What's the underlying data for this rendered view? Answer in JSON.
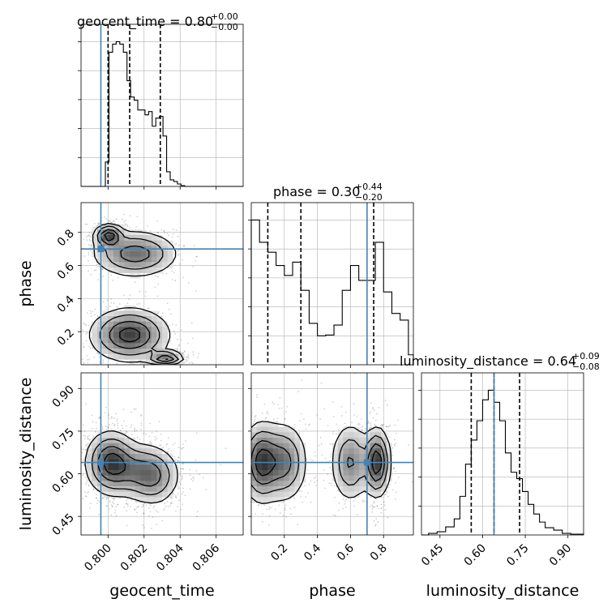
{
  "chart_data": {
    "type": "corner",
    "parameters": [
      "geocent_time",
      "phase",
      "luminosity_distance"
    ],
    "axis_labels": {
      "x": [
        "geocent_time",
        "phase",
        "luminosity_distance"
      ],
      "y_phase": "phase",
      "y_luminosity_distance": "luminosity_distance"
    },
    "titles": [
      {
        "param": "geocent_time",
        "text": "geocent_time = 0.80",
        "plus": "+0.00",
        "minus": "−0.00"
      },
      {
        "param": "phase",
        "text": "phase = 0.30",
        "plus": "+0.44",
        "minus": "−0.20"
      },
      {
        "param": "luminosity_distance",
        "text": "luminosity_distance = 0.64",
        "plus": "+0.09",
        "minus": "−0.08"
      }
    ],
    "ranges": {
      "geocent_time": [
        0.7985,
        0.8075
      ],
      "phase": [
        0.0,
        0.98
      ],
      "luminosity_distance": [
        0.385,
        0.955
      ]
    },
    "ticks": {
      "geocent_time": [
        {
          "v": 0.8,
          "label": "0.800"
        },
        {
          "v": 0.802,
          "label": "0.802"
        },
        {
          "v": 0.804,
          "label": "0.804"
        },
        {
          "v": 0.806,
          "label": "0.806"
        }
      ],
      "phase": [
        {
          "v": 0.2,
          "label": "0.2"
        },
        {
          "v": 0.4,
          "label": "0.4"
        },
        {
          "v": 0.6,
          "label": "0.6"
        },
        {
          "v": 0.8,
          "label": "0.8"
        }
      ],
      "luminosity_distance": [
        {
          "v": 0.45,
          "label": "0.45"
        },
        {
          "v": 0.6,
          "label": "0.60"
        },
        {
          "v": 0.75,
          "label": "0.75"
        },
        {
          "v": 0.9,
          "label": "0.90"
        }
      ]
    },
    "truths": {
      "geocent_time": 0.7996,
      "phase": 0.7,
      "luminosity_distance": 0.64
    },
    "quantiles": {
      "geocent_time": [
        0.8,
        0.8012,
        0.8029
      ],
      "phase": [
        0.1,
        0.3,
        0.74
      ],
      "luminosity_distance": [
        0.56,
        0.64,
        0.73
      ]
    },
    "histograms": {
      "geocent_time": {
        "edges": [
          0.7985,
          0.79985,
          0.80005,
          0.80025,
          0.80045,
          0.80065,
          0.80085,
          0.80105,
          0.80125,
          0.80145,
          0.80165,
          0.80185,
          0.80205,
          0.80225,
          0.80245,
          0.80265,
          0.80285,
          0.80305,
          0.80325,
          0.80345,
          0.80365,
          0.80385,
          0.80405,
          0.80425,
          0.80445,
          0.8075
        ],
        "counts": [
          0,
          30,
          165,
          175,
          178,
          175,
          165,
          130,
          110,
          106,
          94,
          94,
          88,
          92,
          74,
          84,
          86,
          62,
          18,
          8,
          6,
          3,
          1,
          0,
          0
        ]
      },
      "phase": {
        "edges": [
          0,
          0.05,
          0.1,
          0.15,
          0.2,
          0.25,
          0.3,
          0.35,
          0.4,
          0.45,
          0.5,
          0.55,
          0.6,
          0.65,
          0.7,
          0.75,
          0.8,
          0.85,
          0.9,
          0.95,
          0.98
        ],
        "counts": [
          175,
          148,
          136,
          120,
          108,
          124,
          90,
          50,
          35,
          36,
          48,
          90,
          120,
          102,
          102,
          148,
          88,
          62,
          54,
          12
        ]
      },
      "luminosity_distance": {
        "edges": [
          0.385,
          0.41,
          0.44,
          0.47,
          0.5,
          0.52,
          0.54,
          0.56,
          0.58,
          0.6,
          0.62,
          0.64,
          0.66,
          0.68,
          0.7,
          0.72,
          0.74,
          0.76,
          0.78,
          0.8,
          0.82,
          0.85,
          0.88,
          0.91,
          0.955
        ],
        "counts": [
          0,
          2,
          4,
          10,
          20,
          48,
          88,
          118,
          142,
          168,
          180,
          165,
          142,
          102,
          78,
          70,
          54,
          38,
          26,
          16,
          9,
          6,
          2,
          1
        ]
      }
    },
    "density_2d": {
      "phase_vs_geocent_time": {
        "modes": [
          {
            "x": 0.80005,
            "y": 0.78,
            "sx": 0.0004,
            "sy": 0.035,
            "w": 0.6
          },
          {
            "x": 0.8015,
            "y": 0.67,
            "sx": 0.0012,
            "sy": 0.07,
            "w": 0.45
          },
          {
            "x": 0.8012,
            "y": 0.18,
            "sx": 0.0011,
            "sy": 0.08,
            "w": 0.6
          },
          {
            "x": 0.8032,
            "y": 0.04,
            "sx": 0.0005,
            "sy": 0.02,
            "w": 0.55
          }
        ],
        "contour_levels": [
          0.12,
          0.3,
          0.55,
          0.8
        ]
      },
      "luminosity_distance_vs_geocent_time": {
        "modes": [
          {
            "x": 0.80015,
            "y": 0.64,
            "sx": 0.0007,
            "sy": 0.055,
            "w": 0.9
          },
          {
            "x": 0.8018,
            "y": 0.61,
            "sx": 0.001,
            "sy": 0.05,
            "w": 0.55
          },
          {
            "x": 0.80255,
            "y": 0.58,
            "sx": 0.0007,
            "sy": 0.05,
            "w": 0.35
          }
        ],
        "contour_levels": [
          0.12,
          0.3,
          0.55,
          0.8
        ]
      },
      "luminosity_distance_vs_phase": {
        "modes": [
          {
            "x": 0.06,
            "y": 0.64,
            "sx": 0.06,
            "sy": 0.07,
            "w": 0.85
          },
          {
            "x": 0.2,
            "y": 0.64,
            "sx": 0.07,
            "sy": 0.07,
            "w": 0.6
          },
          {
            "x": 0.6,
            "y": 0.64,
            "sx": 0.06,
            "sy": 0.07,
            "w": 0.55
          },
          {
            "x": 0.76,
            "y": 0.64,
            "sx": 0.04,
            "sy": 0.06,
            "w": 0.95
          }
        ],
        "contour_levels": [
          0.12,
          0.3,
          0.55,
          0.8
        ]
      }
    },
    "colors": {
      "hist": "#000000",
      "truth": "#4682b4",
      "quantile": "#000000",
      "grid": "#b0b0b0",
      "density_max": "#202020",
      "points": "#000000"
    },
    "grid": true
  }
}
